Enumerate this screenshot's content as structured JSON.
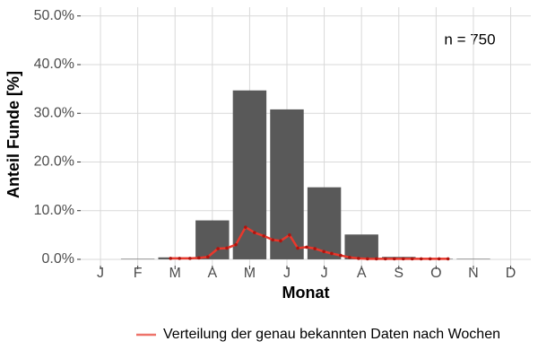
{
  "chart_data": {
    "type": "bar",
    "annotation": "n = 750",
    "xlabel": "Monat",
    "ylabel": "Anteil Funde [%]",
    "categories": [
      "J",
      "F",
      "M",
      "A",
      "M",
      "J",
      "J",
      "A",
      "S",
      "O",
      "N",
      "D"
    ],
    "values": [
      0,
      0.1,
      0.4,
      8.0,
      34.7,
      30.8,
      14.8,
      5.1,
      0.5,
      0.1,
      0.1,
      0
    ],
    "color": "#595959",
    "xlim": [
      0.47,
      12.54
    ],
    "ylim": [
      -1.3,
      51.8
    ],
    "yticks": [
      {
        "value": 0,
        "label": "0.0%"
      },
      {
        "value": 10,
        "label": "10.0%"
      },
      {
        "value": 20,
        "label": "20.0%"
      },
      {
        "value": 30,
        "label": "30.0%"
      },
      {
        "value": 40,
        "label": "40.0%"
      },
      {
        "value": 50,
        "label": "50.0%"
      }
    ],
    "grid": true,
    "legend": "bottom",
    "series": [
      {
        "name": "Verteilung der genau bekannten Daten nach Wochen",
        "type": "line",
        "color": "#e8382c",
        "point_color": "#b0140e",
        "x": [
          2.88,
          3.12,
          3.4,
          3.64,
          3.88,
          4.15,
          4.39,
          4.63,
          4.89,
          5.13,
          5.38,
          5.62,
          5.83,
          6.07,
          6.29,
          6.53,
          6.75,
          6.99,
          7.2,
          7.44,
          7.68,
          7.92,
          8.16,
          8.4,
          8.64,
          8.88,
          9.12,
          9.36,
          9.6,
          9.84,
          10.08,
          10.32
        ],
        "values": [
          0.2,
          0.2,
          0.2,
          0.3,
          0.5,
          2.2,
          2.3,
          3.0,
          6.6,
          5.5,
          4.8,
          4.0,
          3.8,
          5.0,
          2.3,
          2.5,
          2.2,
          1.6,
          1.2,
          0.8,
          0.4,
          0.2,
          0.1,
          0.1,
          0.1,
          0.1,
          0.1,
          0.1,
          0.1,
          0.1,
          0.1,
          0.1
        ]
      }
    ]
  }
}
